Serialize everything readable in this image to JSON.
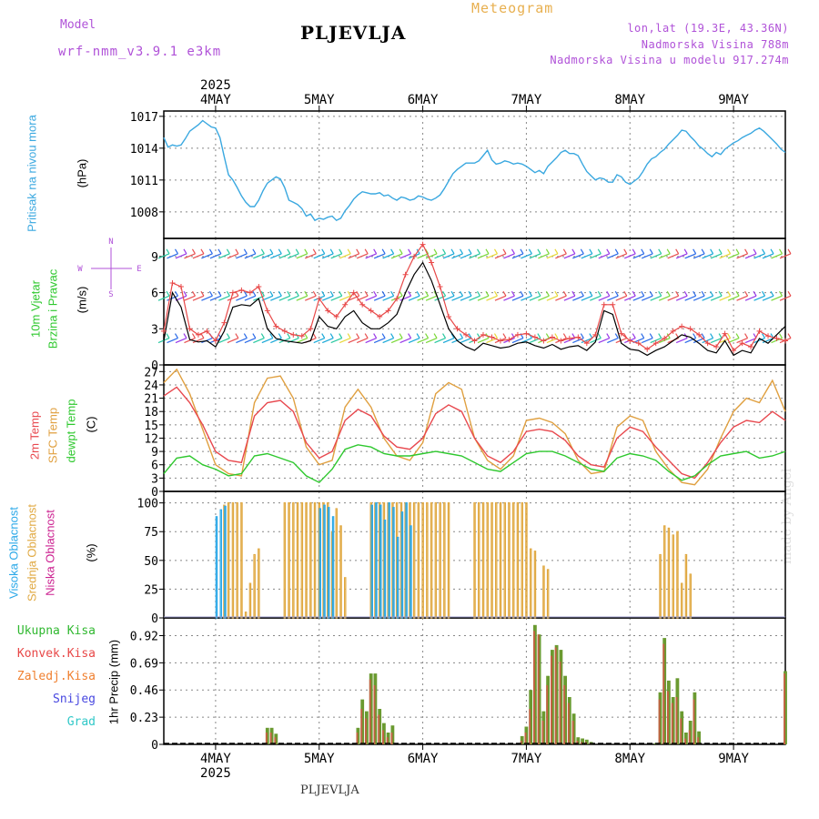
{
  "header": {
    "model_label": "Model",
    "model_name": "wrf-nmm_v3.9.1 e3km",
    "meteogram": "Meteogram",
    "city": "PLJEVLJA",
    "lonlat": "lon,lat (19.3E, 43.36N)",
    "altitude": "Nadmorska Visina 788m",
    "model_altitude": "Nadmorska Visina u modelu 917.274m",
    "watermark": "made by Angel"
  },
  "time_axis": {
    "year": "2025",
    "days": [
      "4MAY",
      "5MAY",
      "6MAY",
      "7MAY",
      "8MAY",
      "9MAY"
    ],
    "range_hours": [
      0,
      144
    ],
    "day_start_hours": [
      12,
      36,
      60,
      84,
      108,
      132
    ]
  },
  "panel_labels": {
    "pressure": [
      "Pritisak na nivou mora",
      "(hPa)"
    ],
    "wind": [
      "10m Vjetar",
      "Brzina i Pravac",
      "(m/s)"
    ],
    "wind_rose": "N\n^\n|\nW <--|--> E\n|\nv\nS",
    "temp": [
      "2m Temp",
      "SFC Temp",
      "dewpt Temp",
      "(C)"
    ],
    "cloud": [
      "Visoka Oblacnost",
      "Srednja Oblacnost",
      "Niska Oblacnost",
      "(%)"
    ],
    "precip": [
      "Ukupna Kisa",
      "Konvek.Kisa",
      "Zaledj.Kisa",
      "Snijeg",
      "Grad"
    ],
    "precip_unit": "1hr Precip (mm)"
  },
  "colors": {
    "pressure": "#3aa8e0",
    "temp2m": "#e8484e",
    "sfc_temp": "#e0a040",
    "dewpt": "#2ec82e",
    "wind_speed": "#000000",
    "gust": "#e84848",
    "cloud_high": "#2aa8e8",
    "cloud_mid": "#e0a840",
    "cloud_low": "#cc2090",
    "precip_total": "#30b830",
    "precip_conv": "#e84848",
    "precip_frz": "#f08030",
    "precip_snow": "#4848e0",
    "precip_hail": "#30c8c8",
    "model_text": "#b052d8",
    "meteogram_text": "#e8b050"
  },
  "chart_data": [
    {
      "name": "pressure",
      "type": "line",
      "ylabel": "Pritisak na nivou mora (hPa)",
      "yticks": [
        1008,
        1011,
        1014,
        1017
      ],
      "ylim": [
        1005.5,
        1017.5
      ],
      "x": [
        0,
        1,
        2,
        3,
        4,
        5,
        6,
        7,
        8,
        9,
        10,
        11,
        12,
        13,
        14,
        15,
        16,
        17,
        18,
        19,
        20,
        21,
        22,
        23,
        24,
        25,
        26,
        27,
        28,
        29,
        30,
        31,
        32,
        33,
        34,
        35,
        36,
        37,
        38,
        39,
        40,
        41,
        42,
        43,
        44,
        45,
        46,
        47,
        48,
        49,
        50,
        51,
        52,
        53,
        54,
        55,
        56,
        57,
        58,
        59,
        60,
        61,
        62,
        63,
        64,
        65,
        66,
        67,
        68,
        69,
        70,
        71,
        72,
        73,
        74,
        75,
        76,
        77,
        78,
        79,
        80,
        81,
        82,
        83,
        84,
        85,
        86,
        87,
        88,
        89,
        90,
        91,
        92,
        93,
        94,
        95,
        96,
        97,
        98,
        99,
        100,
        101,
        102,
        103,
        104,
        105,
        106,
        107,
        108,
        109,
        110,
        111,
        112,
        113,
        114,
        115,
        116,
        117,
        118,
        119,
        120,
        121,
        122,
        123,
        124,
        125,
        126,
        127,
        128,
        129,
        130,
        131,
        132,
        133,
        134,
        135,
        136,
        137,
        138,
        139,
        140,
        141,
        142,
        143,
        144
      ],
      "values": [
        1015.0,
        1014.1,
        1014.3,
        1014.2,
        1014.3,
        1014.9,
        1015.6,
        1015.9,
        1016.2,
        1016.6,
        1016.3,
        1016.0,
        1015.9,
        1015.0,
        1013.2,
        1011.5,
        1011.0,
        1010.3,
        1009.5,
        1008.9,
        1008.5,
        1008.5,
        1009.1,
        1010.0,
        1010.7,
        1011.0,
        1011.3,
        1011.1,
        1010.3,
        1009.1,
        1008.9,
        1008.7,
        1008.3,
        1007.6,
        1007.8,
        1007.2,
        1007.4,
        1007.3,
        1007.5,
        1007.6,
        1007.2,
        1007.4,
        1008.1,
        1008.6,
        1009.2,
        1009.6,
        1009.9,
        1009.8,
        1009.7,
        1009.7,
        1009.8,
        1009.5,
        1009.6,
        1009.3,
        1009.1,
        1009.4,
        1009.3,
        1009.1,
        1009.2,
        1009.5,
        1009.4,
        1009.2,
        1009.1,
        1009.3,
        1009.6,
        1010.2,
        1010.9,
        1011.6,
        1012.0,
        1012.3,
        1012.6,
        1012.6,
        1012.6,
        1012.8,
        1013.3,
        1013.8,
        1012.9,
        1012.5,
        1012.6,
        1012.8,
        1012.7,
        1012.5,
        1012.6,
        1012.5,
        1012.3,
        1012.0,
        1011.7,
        1011.9,
        1011.6,
        1012.3,
        1012.7,
        1013.1,
        1013.6,
        1013.8,
        1013.5,
        1013.5,
        1013.3,
        1012.5,
        1011.8,
        1011.4,
        1011.0,
        1011.2,
        1011.1,
        1010.8,
        1010.8,
        1011.5,
        1011.3,
        1010.8,
        1010.6,
        1010.9,
        1011.2,
        1011.8,
        1012.5,
        1013.0,
        1013.2,
        1013.6,
        1013.9,
        1014.4,
        1014.8,
        1015.2,
        1015.7,
        1015.6,
        1015.1,
        1014.7,
        1014.2,
        1013.9,
        1013.5,
        1013.2,
        1013.6,
        1013.4,
        1013.9,
        1014.2,
        1014.5,
        1014.7,
        1015.0,
        1015.2,
        1015.4,
        1015.7,
        1015.9,
        1015.6,
        1015.2,
        1014.8,
        1014.4,
        1013.9,
        1013.6
      ]
    },
    {
      "name": "wind",
      "type": "line",
      "ylabel": "10m Vjetar Brzina i Pravac (m/s)",
      "yticks": [
        0,
        3,
        6,
        9
      ],
      "ylim": [
        0,
        10.5
      ],
      "x_wind": [
        0,
        2,
        4,
        6,
        8,
        10,
        12,
        14,
        16,
        18,
        20,
        22,
        24,
        26,
        28,
        30,
        32,
        34,
        36,
        38,
        40,
        42,
        44,
        46,
        48,
        50,
        52,
        54,
        56,
        58,
        60,
        62,
        64,
        66,
        68,
        70,
        72,
        74,
        76,
        78,
        80,
        82,
        84,
        86,
        88,
        90,
        92,
        94,
        96,
        98,
        100,
        102,
        104,
        106,
        108,
        110,
        112,
        114,
        116,
        118,
        120,
        122,
        124,
        126,
        128,
        130,
        132,
        134,
        136,
        138,
        140,
        142,
        144
      ],
      "speed": [
        2.0,
        6.0,
        4.8,
        2.1,
        1.9,
        2.0,
        1.5,
        2.8,
        4.8,
        5.0,
        4.9,
        5.5,
        3.0,
        2.2,
        2.0,
        1.9,
        1.8,
        2.0,
        4.0,
        3.2,
        3.0,
        4.0,
        4.5,
        3.5,
        3.0,
        3.0,
        3.5,
        4.2,
        6.0,
        7.5,
        8.5,
        7.0,
        5.0,
        3.0,
        2.0,
        1.5,
        1.2,
        1.8,
        1.6,
        1.4,
        1.5,
        1.8,
        1.9,
        1.6,
        1.4,
        1.7,
        1.3,
        1.5,
        1.6,
        1.2,
        1.9,
        4.5,
        4.2,
        1.8,
        1.3,
        1.2,
        0.8,
        1.2,
        1.5,
        2.0,
        2.5,
        2.3,
        1.8,
        1.2,
        1.0,
        2.0,
        0.8,
        1.2,
        1.0,
        2.2,
        1.8,
        2.5,
        3.2
      ],
      "gust": [
        2.8,
        6.8,
        6.5,
        3.0,
        2.5,
        2.8,
        2.0,
        3.5,
        6.0,
        6.2,
        6.0,
        6.5,
        4.5,
        3.2,
        2.8,
        2.5,
        2.4,
        3.0,
        5.5,
        4.5,
        4.0,
        5.0,
        6.0,
        5.0,
        4.5,
        4.0,
        4.5,
        5.5,
        7.5,
        9.0,
        10.0,
        8.5,
        6.5,
        4.0,
        3.0,
        2.5,
        2.0,
        2.5,
        2.3,
        2.0,
        2.1,
        2.5,
        2.6,
        2.3,
        2.0,
        2.3,
        2.0,
        2.2,
        2.3,
        1.8,
        2.5,
        5.0,
        5.0,
        2.6,
        2.0,
        1.8,
        1.3,
        1.8,
        2.2,
        2.8,
        3.2,
        3.0,
        2.5,
        1.8,
        1.5,
        2.6,
        1.2,
        1.8,
        1.5,
        2.8,
        2.4,
        2.2,
        2.0
      ]
    },
    {
      "name": "temperature",
      "type": "line",
      "ylabel": "(C)",
      "yticks": [
        0,
        3,
        6,
        9,
        12,
        15,
        18,
        21,
        24,
        27
      ],
      "ylim": [
        0,
        28.5
      ],
      "x": [
        0,
        3,
        6,
        9,
        12,
        15,
        18,
        21,
        24,
        27,
        30,
        33,
        36,
        39,
        42,
        45,
        48,
        51,
        54,
        57,
        60,
        63,
        66,
        69,
        72,
        75,
        78,
        81,
        84,
        87,
        90,
        93,
        96,
        99,
        102,
        105,
        108,
        111,
        114,
        117,
        120,
        123,
        126,
        129,
        132,
        135,
        138,
        141,
        144
      ],
      "temp2m": [
        21.5,
        23.5,
        20.0,
        15.0,
        9.0,
        7.0,
        6.5,
        17.0,
        20.0,
        20.5,
        18.0,
        11.0,
        7.5,
        9.0,
        16.0,
        18.5,
        17.0,
        12.5,
        10.0,
        9.5,
        12.0,
        17.5,
        19.5,
        18.0,
        12.0,
        8.0,
        6.5,
        9.0,
        13.5,
        14.0,
        13.5,
        11.5,
        8.0,
        6.0,
        5.5,
        12.0,
        14.5,
        13.5,
        10.0,
        7.0,
        4.0,
        3.0,
        6.5,
        11.0,
        14.5,
        16.0,
        15.5,
        18.0,
        16.0
      ],
      "sfc_temp": [
        24.5,
        27.5,
        22.0,
        14.0,
        6.0,
        4.0,
        3.5,
        20.0,
        25.5,
        26.0,
        21.0,
        10.0,
        6.0,
        7.0,
        19.0,
        23.0,
        19.0,
        12.0,
        8.0,
        7.0,
        11.0,
        22.0,
        24.5,
        23.0,
        12.0,
        7.0,
        5.0,
        8.0,
        16.0,
        16.5,
        15.5,
        13.0,
        7.0,
        4.0,
        4.5,
        14.5,
        17.0,
        16.0,
        9.0,
        5.0,
        2.0,
        1.5,
        5.0,
        12.0,
        18.0,
        21.0,
        20.0,
        25.0,
        18.0
      ],
      "dewpt": [
        4.0,
        7.5,
        8.0,
        6.0,
        5.0,
        3.5,
        4.0,
        8.0,
        8.5,
        7.5,
        6.5,
        3.5,
        2.0,
        5.0,
        9.5,
        10.5,
        10.0,
        8.5,
        8.0,
        8.0,
        8.5,
        9.0,
        8.5,
        8.0,
        6.5,
        5.0,
        4.5,
        6.5,
        8.5,
        9.0,
        9.0,
        8.0,
        6.5,
        5.0,
        4.5,
        7.5,
        8.5,
        8.0,
        7.0,
        4.5,
        2.5,
        3.5,
        6.0,
        8.0,
        8.5,
        9.0,
        7.5,
        8.0,
        9.0
      ]
    },
    {
      "name": "cloud_cover",
      "type": "bar",
      "ylabel": "(%)",
      "yticks": [
        0,
        25,
        50,
        75,
        100
      ],
      "ylim": [
        0,
        110
      ],
      "x": [
        12,
        13,
        14,
        15,
        16,
        17,
        18,
        19,
        20,
        21,
        22,
        23,
        28,
        29,
        30,
        31,
        32,
        33,
        34,
        35,
        36,
        37,
        38,
        39,
        40,
        41,
        42,
        43,
        48,
        49,
        50,
        51,
        52,
        53,
        54,
        55,
        56,
        57,
        58,
        59,
        60,
        61,
        62,
        63,
        64,
        65,
        66,
        67,
        68,
        72,
        73,
        74,
        75,
        76,
        77,
        78,
        79,
        80,
        81,
        82,
        83,
        84,
        85,
        86,
        87,
        88,
        89,
        90,
        91,
        92,
        96,
        97,
        98,
        99,
        100,
        101,
        102,
        103,
        104,
        112,
        113,
        114,
        115,
        116,
        117,
        118,
        119,
        120,
        121,
        122,
        123,
        124,
        125,
        126,
        127,
        128,
        129,
        142,
        143,
        144
      ],
      "high": [
        88,
        94,
        97,
        0,
        0,
        0,
        0,
        0,
        0,
        0,
        0,
        0,
        0,
        0,
        0,
        0,
        0,
        0,
        0,
        0,
        95,
        98,
        96,
        88,
        0,
        0,
        0,
        0,
        98,
        100,
        98,
        85,
        100,
        96,
        70,
        92,
        100,
        80,
        0,
        0,
        0,
        0,
        0,
        0,
        0,
        0,
        0,
        0,
        0,
        0,
        0,
        0,
        0,
        0,
        0,
        0,
        0,
        0,
        0,
        0,
        0,
        0,
        0,
        0,
        0,
        0,
        0,
        0,
        0,
        0,
        0,
        0,
        0,
        0,
        0,
        0,
        0,
        0,
        0,
        0,
        0,
        0,
        0,
        0,
        0,
        0,
        0,
        0,
        0,
        0,
        0,
        0,
        0,
        0,
        0,
        0,
        0,
        0,
        0,
        0
      ],
      "mid": [
        0,
        0,
        98,
        100,
        100,
        100,
        100,
        5,
        30,
        55,
        60,
        0,
        100,
        100,
        100,
        100,
        100,
        100,
        100,
        100,
        100,
        100,
        100,
        75,
        95,
        80,
        35,
        0,
        100,
        100,
        100,
        100,
        100,
        100,
        100,
        100,
        100,
        100,
        100,
        100,
        100,
        100,
        100,
        100,
        100,
        100,
        100,
        0,
        0,
        100,
        100,
        100,
        100,
        100,
        100,
        100,
        100,
        100,
        100,
        100,
        100,
        100,
        60,
        58,
        0,
        45,
        42,
        0,
        0,
        0,
        0,
        0,
        0,
        0,
        0,
        0,
        0,
        0,
        0,
        0,
        0,
        0,
        55,
        80,
        78,
        72,
        75,
        30,
        55,
        38,
        0,
        0,
        0,
        0,
        0,
        0,
        0,
        0,
        0,
        0
      ],
      "low": [
        0,
        0,
        0,
        0,
        0,
        0,
        0,
        0,
        0,
        0,
        0,
        0,
        0,
        0,
        0,
        0,
        0,
        0,
        0,
        0,
        0,
        0,
        0,
        0,
        0,
        0,
        0,
        0,
        0,
        0,
        0,
        0,
        0,
        0,
        0,
        0,
        0,
        0,
        0,
        0,
        0,
        0,
        0,
        0,
        0,
        0,
        0,
        0,
        0,
        0,
        0,
        0,
        0,
        0,
        0,
        0,
        0,
        0,
        0,
        0,
        0,
        0,
        0,
        0,
        0,
        0,
        0,
        0,
        0,
        0,
        0,
        0,
        0,
        0,
        0,
        0,
        0,
        0,
        0,
        0,
        0,
        0,
        0,
        0,
        0,
        0,
        0,
        0,
        0,
        0,
        0,
        0,
        0,
        0,
        0,
        0,
        0,
        0,
        0,
        0
      ]
    },
    {
      "name": "precipitation",
      "type": "bar",
      "ylabel": "1hr Precip (mm)",
      "yticks": [
        0,
        0.23,
        0.46,
        0.69,
        0.92
      ],
      "ylim": [
        0,
        1.07
      ],
      "x": [
        24,
        25,
        26,
        45,
        46,
        47,
        48,
        49,
        50,
        51,
        52,
        53,
        83,
        84,
        85,
        86,
        87,
        88,
        89,
        90,
        91,
        92,
        93,
        94,
        95,
        96,
        97,
        98,
        99,
        114,
        115,
        116,
        117,
        118,
        119,
        120,
        121,
        122,
        123,
        124,
        144
      ],
      "total": [
        0.14,
        0.14,
        0.09,
        0.14,
        0.38,
        0.28,
        0.6,
        0.6,
        0.3,
        0.18,
        0.1,
        0.16,
        0.07,
        0.15,
        0.46,
        1.01,
        0.93,
        0.28,
        0.58,
        0.8,
        0.84,
        0.8,
        0.58,
        0.4,
        0.26,
        0.06,
        0.05,
        0.04,
        0.02,
        0.01,
        0.44,
        0.9,
        0.54,
        0.4,
        0.56,
        0.28,
        0.1,
        0.2,
        0.44,
        0.11,
        0.62
      ],
      "convective": [
        0.1,
        0.1,
        0.06,
        0.1,
        0.3,
        0.22,
        0.55,
        0.5,
        0.25,
        0.12,
        0.06,
        0.1,
        0.03,
        0.1,
        0.3,
        0.96,
        0.93,
        0.2,
        0.5,
        0.75,
        0.82,
        0.7,
        0.5,
        0.35,
        0.2,
        0.03,
        0.02,
        0.02,
        0.01,
        0.0,
        0.38,
        0.85,
        0.45,
        0.35,
        0.4,
        0.22,
        0.05,
        0.12,
        0.38,
        0.06,
        0.6
      ]
    }
  ]
}
